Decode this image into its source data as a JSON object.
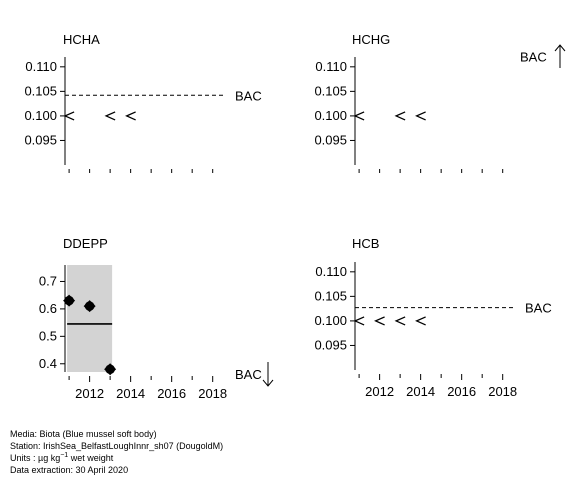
{
  "chart_data": [
    {
      "type": "scatter",
      "title": "HCHA",
      "ylim": [
        0.09,
        0.112
      ],
      "xlim": [
        2010.8,
        2018.6
      ],
      "yticks": [
        "0.110",
        "0.105",
        "0.100",
        "0.095"
      ],
      "ytick_values": [
        0.11,
        0.105,
        0.1,
        0.095
      ],
      "xticks": [],
      "points": [
        {
          "x": 2011,
          "y": 0.1,
          "marker": "<"
        },
        {
          "x": 2013,
          "y": 0.1,
          "marker": "<"
        },
        {
          "x": 2014,
          "y": 0.1,
          "marker": "<"
        }
      ],
      "reference_line": {
        "label": "BAC",
        "value": 0.1042
      },
      "arrow": ""
    },
    {
      "type": "scatter",
      "title": "HCHG",
      "ylim": [
        0.09,
        0.112
      ],
      "xlim": [
        2010.8,
        2018.6
      ],
      "yticks": [
        "0.110",
        "0.105",
        "0.100",
        "0.095"
      ],
      "ytick_values": [
        0.11,
        0.105,
        0.1,
        0.095
      ],
      "xticks": [],
      "points": [
        {
          "x": 2011,
          "y": 0.1,
          "marker": "<"
        },
        {
          "x": 2013,
          "y": 0.1,
          "marker": "<"
        },
        {
          "x": 2014,
          "y": 0.1,
          "marker": "<"
        }
      ],
      "reference_line": {
        "label": "BAC",
        "value": null
      },
      "arrow": "up"
    },
    {
      "type": "scatter",
      "title": "DDEPP",
      "ylim": [
        0.37,
        0.76
      ],
      "xlim": [
        2010.8,
        2018.6
      ],
      "yticks": [
        "0.7",
        "0.6",
        "0.5",
        "0.4"
      ],
      "ytick_values": [
        0.7,
        0.6,
        0.5,
        0.4
      ],
      "xticks": [
        "2012",
        "2014",
        "2016",
        "2018"
      ],
      "xtick_values": [
        2012,
        2014,
        2016,
        2018
      ],
      "points": [
        {
          "x": 2011,
          "y": 0.63,
          "marker": "filled-circle"
        },
        {
          "x": 2012,
          "y": 0.61,
          "marker": "filled-circle"
        },
        {
          "x": 2013,
          "y": 0.38,
          "marker": "filled-circle"
        }
      ],
      "confidence_band": {
        "x_start": 2011,
        "x_end": 2013,
        "y_low": 0.37,
        "y_high": 0.76
      },
      "fitted_level": {
        "x_start": 2011,
        "x_end": 2013,
        "y": 0.545
      },
      "reference_line": {
        "label": "BAC",
        "value": null
      },
      "arrow": "down"
    },
    {
      "type": "scatter",
      "title": "HCB",
      "ylim": [
        0.09,
        0.112
      ],
      "xlim": [
        2010.8,
        2018.6
      ],
      "yticks": [
        "0.110",
        "0.105",
        "0.100",
        "0.095"
      ],
      "ytick_values": [
        0.11,
        0.105,
        0.1,
        0.095
      ],
      "xticks": [
        "2012",
        "2014",
        "2016",
        "2018"
      ],
      "xtick_values": [
        2012,
        2014,
        2016,
        2018
      ],
      "points": [
        {
          "x": 2011,
          "y": 0.1,
          "marker": "<"
        },
        {
          "x": 2012,
          "y": 0.1,
          "marker": "<"
        },
        {
          "x": 2013,
          "y": 0.1,
          "marker": "<"
        },
        {
          "x": 2014,
          "y": 0.1,
          "marker": "<"
        }
      ],
      "reference_line": {
        "label": "BAC",
        "value": 0.1027
      },
      "arrow": ""
    }
  ],
  "footer": {
    "media": "Media: Biota (Blue mussel soft body)",
    "station": "Station: IrishSea_BelfastLoughInnr_sh07 (DougoldM)",
    "units_prefix": "Units :  µg kg",
    "units_exp": "−1",
    "units_suffix": " wet weight",
    "extraction": "Data extraction: 30 April 2020"
  }
}
